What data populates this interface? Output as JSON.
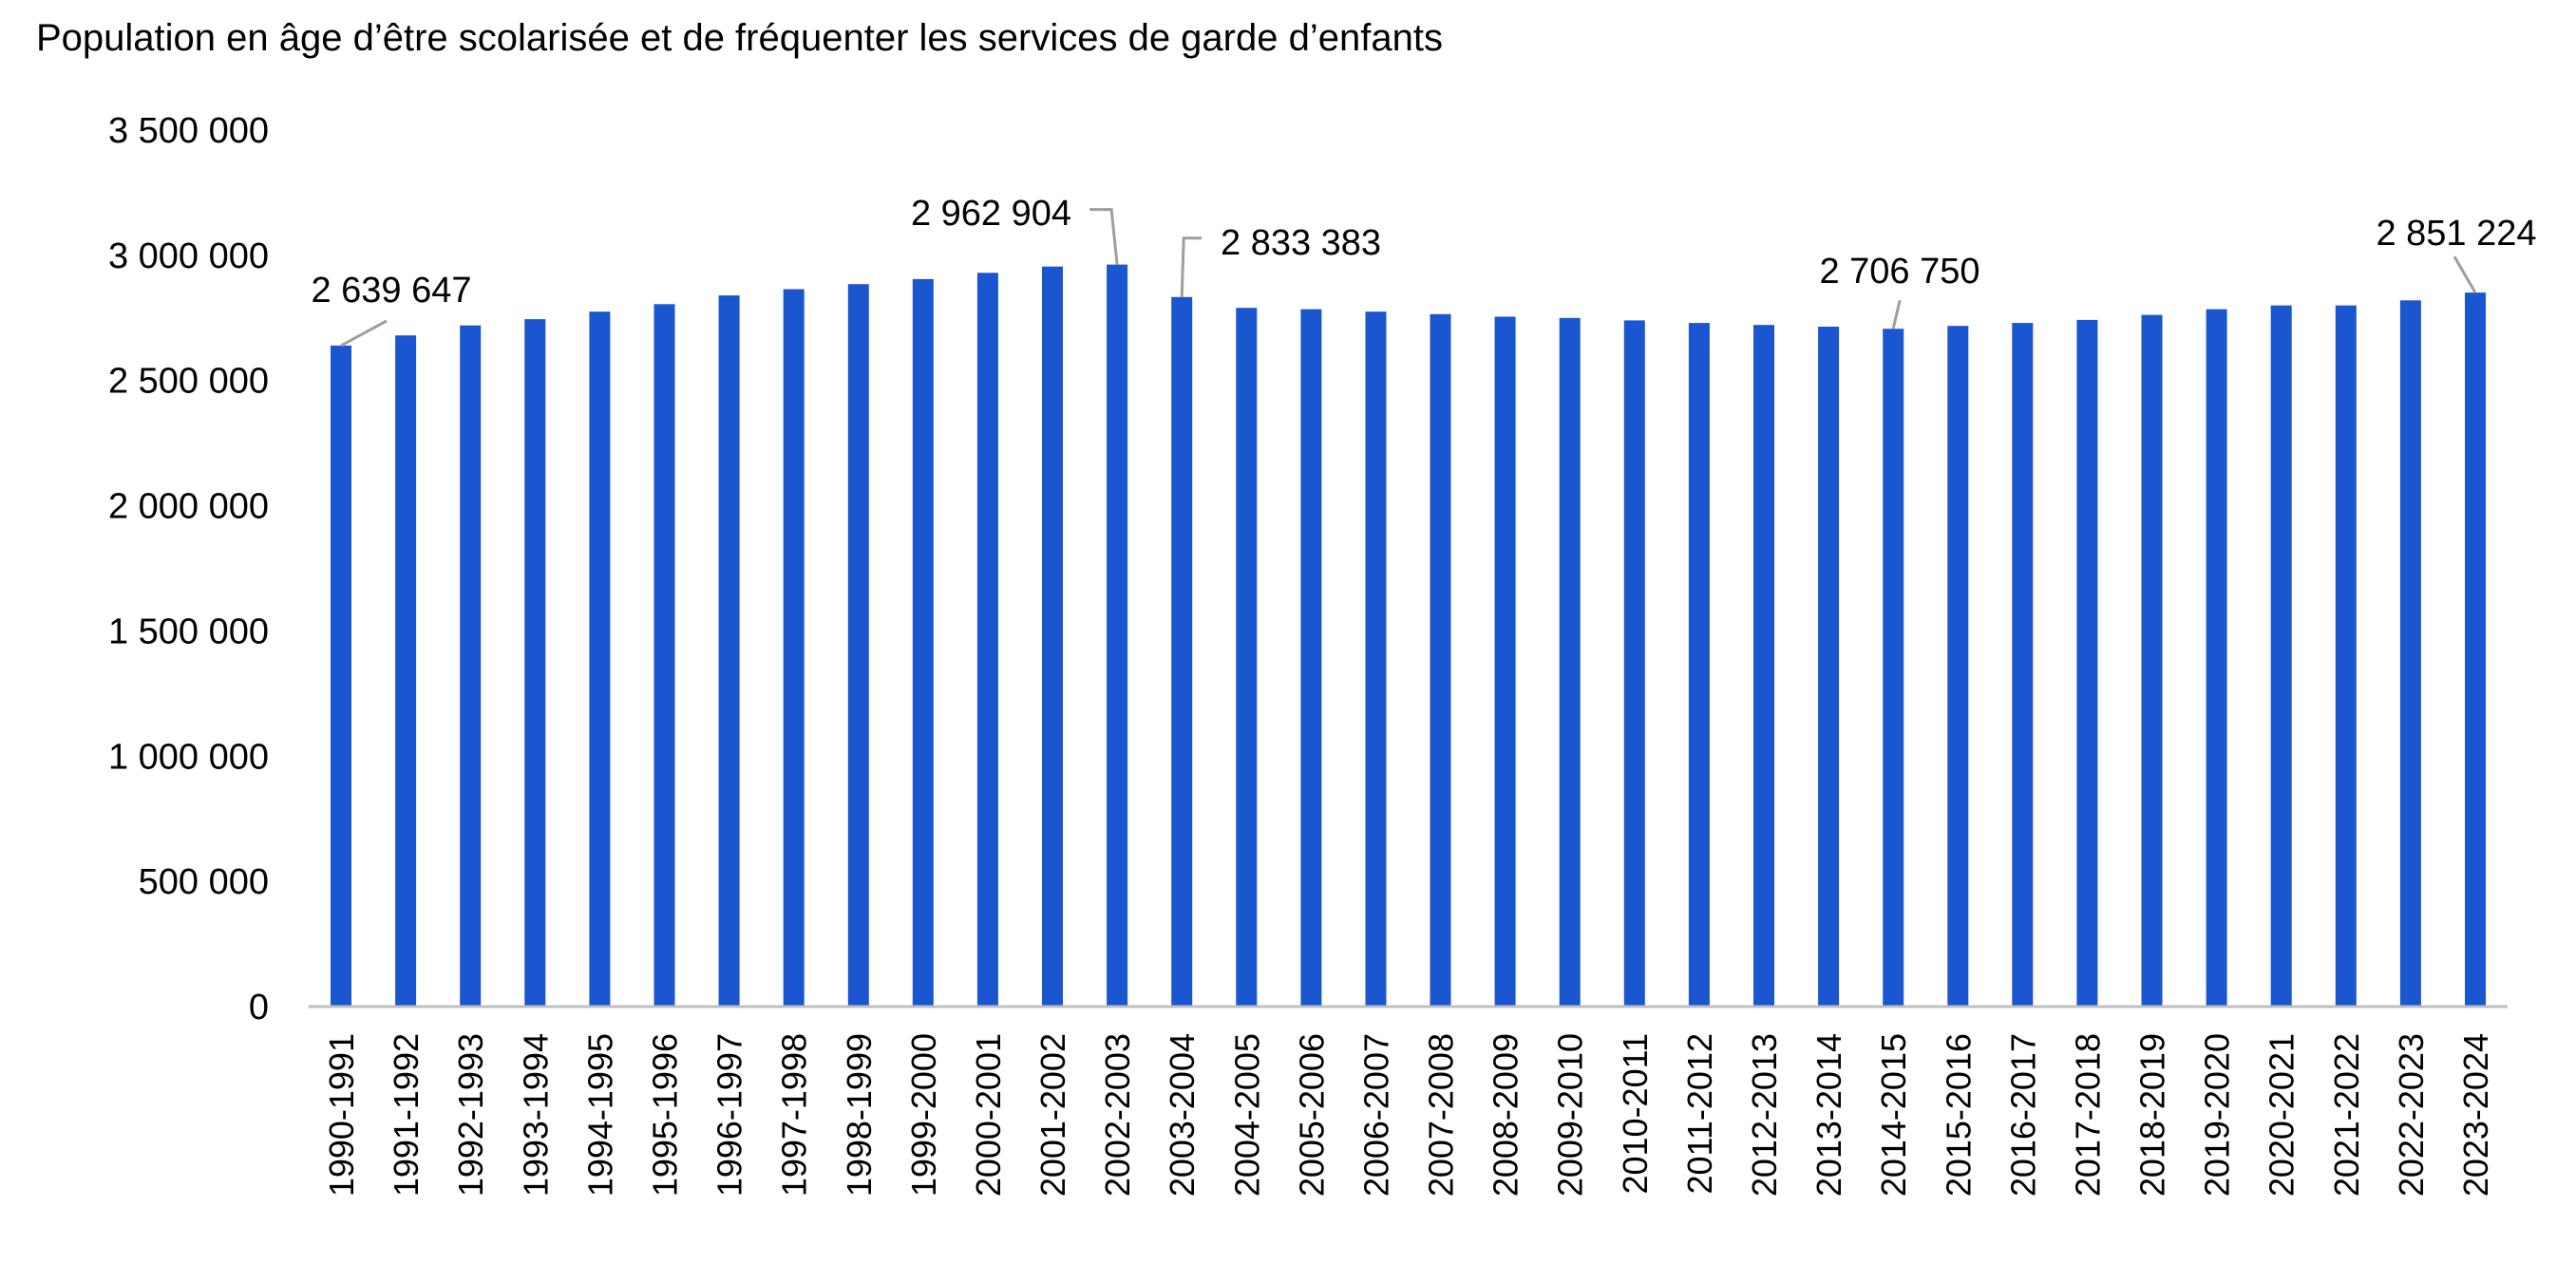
{
  "chart_data": {
    "type": "bar",
    "title": "Population en âge d’être scolarisée et de fréquenter les services de garde d’enfants",
    "xlabel": "",
    "ylabel": "",
    "ylim": [
      0,
      3500000
    ],
    "yticks": [
      0,
      500000,
      1000000,
      1500000,
      2000000,
      2500000,
      3000000,
      3500000
    ],
    "ytick_labels": [
      "0",
      "500 000",
      "1 000 000",
      "1 500 000",
      "2 000 000",
      "2 500 000",
      "3 000 000",
      "3 500 000"
    ],
    "grid": false,
    "legend": "none",
    "bar_color": "#1a56d0",
    "categories": [
      "1990-1991",
      "1991-1992",
      "1992-1993",
      "1993-1994",
      "1994-1995",
      "1995-1996",
      "1996-1997",
      "1997-1998",
      "1998-1999",
      "1999-2000",
      "2000-2001",
      "2001-2002",
      "2002-2003",
      "2003-2004",
      "2004-2005",
      "2005-2006",
      "2006-2007",
      "2007-2008",
      "2008-2009",
      "2009-2010",
      "2010-2011",
      "2011-2012",
      "2012-2013",
      "2013-2014",
      "2014-2015",
      "2015-2016",
      "2016-2017",
      "2017-2018",
      "2018-2019",
      "2019-2020",
      "2020-2021",
      "2021-2022",
      "2022-2023",
      "2023-2024"
    ],
    "values": [
      2639647,
      2680000,
      2720000,
      2745000,
      2775000,
      2805000,
      2840000,
      2865000,
      2885000,
      2905000,
      2930000,
      2955000,
      2962904,
      2833383,
      2790000,
      2785000,
      2775000,
      2765000,
      2755000,
      2750000,
      2740000,
      2730000,
      2722000,
      2715000,
      2706750,
      2718000,
      2730000,
      2742000,
      2762000,
      2785000,
      2800000,
      2800000,
      2820000,
      2851224
    ],
    "annotations": [
      {
        "index": 0,
        "text": "2 639 647"
      },
      {
        "index": 12,
        "text": "2 962 904"
      },
      {
        "index": 13,
        "text": "2 833 383"
      },
      {
        "index": 24,
        "text": "2 706 750"
      },
      {
        "index": 33,
        "text": "2 851 224"
      }
    ]
  }
}
